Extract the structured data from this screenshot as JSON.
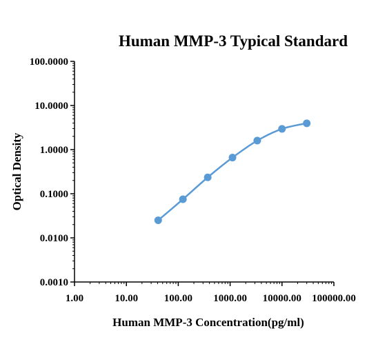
{
  "chart_data": {
    "type": "line",
    "title": "Human MMP-3  Typical Standard",
    "xlabel": "Human MMP-3 Concentration(pg/ml)",
    "ylabel": "Optical Density",
    "x_scale": "log",
    "y_scale": "log",
    "xlim": [
      1,
      100000
    ],
    "ylim": [
      0.001,
      100
    ],
    "x_ticks": [
      "1.00",
      "10.00",
      "100.00",
      "1000.00",
      "10000.00",
      "100000.00"
    ],
    "y_ticks": [
      "0.0010",
      "0.0100",
      "0.1000",
      "1.0000",
      "10.0000",
      "100.0000"
    ],
    "grid": false,
    "series": [
      {
        "x": [
          41,
          123,
          370,
          1111,
          3333,
          10000,
          30000
        ],
        "y": [
          0.025,
          0.075,
          0.235,
          0.66,
          1.6,
          2.95,
          3.95
        ]
      }
    ],
    "colors": {
      "series": "#5b9bd5",
      "axis": "#000000"
    }
  }
}
